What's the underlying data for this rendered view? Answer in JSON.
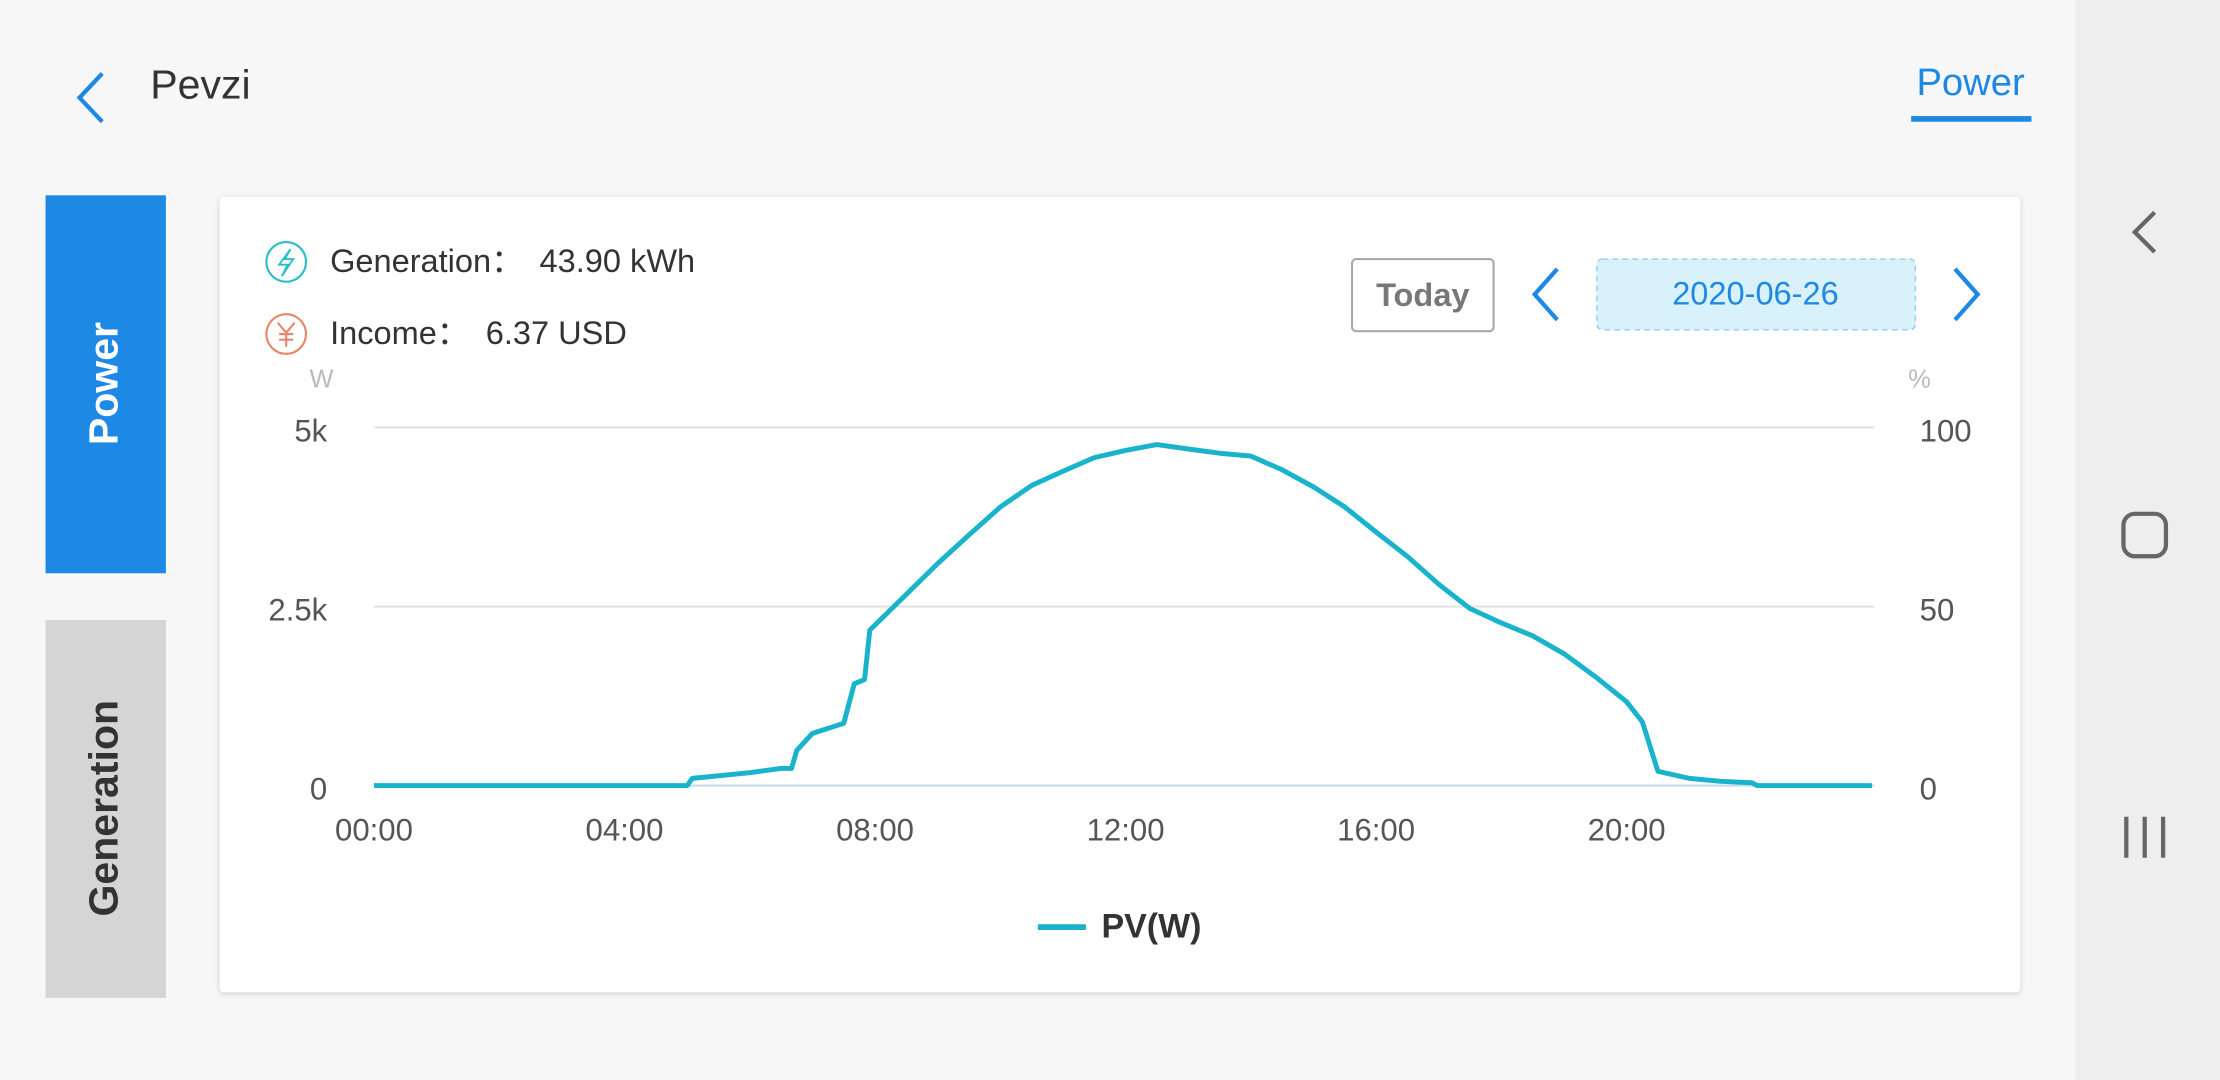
{
  "header": {
    "title": "Pevzi",
    "tab": "Power"
  },
  "side_tabs": [
    "Power",
    "Generation"
  ],
  "summary": {
    "generation_label": "Generation：",
    "generation_value": "43.90 kWh",
    "income_label": "Income：",
    "income_value": "6.37 USD"
  },
  "date_nav": {
    "today": "Today",
    "date": "2020-06-26"
  },
  "chart_data": {
    "type": "line",
    "y_unit": "W",
    "y2_unit": "%",
    "x": [
      "00:00",
      "05:00",
      "05:05",
      "06:00",
      "06:30",
      "06:40",
      "06:45",
      "07:00",
      "07:30",
      "07:40",
      "07:50",
      "07:55",
      "08:30",
      "09:00",
      "09:30",
      "10:00",
      "10:30",
      "11:00",
      "11:30",
      "12:00",
      "12:30",
      "13:00",
      "13:30",
      "14:00",
      "14:30",
      "15:00",
      "15:30",
      "16:00",
      "16:30",
      "17:00",
      "17:30",
      "18:00",
      "18:30",
      "19:00",
      "19:30",
      "20:00",
      "20:15",
      "20:30",
      "21:00",
      "21:30",
      "22:00",
      "22:05",
      "23:55"
    ],
    "series": [
      {
        "name": "PV(W)",
        "color": "#1ab3cc",
        "values": [
          0,
          0,
          100,
          180,
          240,
          240,
          490,
          730,
          870,
          1420,
          1480,
          2170,
          2670,
          3100,
          3500,
          3890,
          4190,
          4390,
          4580,
          4680,
          4760,
          4700,
          4640,
          4600,
          4410,
          4170,
          3890,
          3540,
          3200,
          2810,
          2470,
          2270,
          2090,
          1840,
          1520,
          1170,
          890,
          200,
          100,
          60,
          40,
          0,
          0
        ]
      }
    ],
    "xlim": [
      "00:00",
      "24:00"
    ],
    "xticks": [
      "00:00",
      "04:00",
      "08:00",
      "12:00",
      "16:00",
      "20:00"
    ],
    "ylim": [
      0,
      5000
    ],
    "yticks": [
      0,
      {
        "value": 2500,
        "label": "2.5k"
      },
      {
        "value": 5000,
        "label": "5k"
      }
    ],
    "y2lim": [
      0,
      100
    ],
    "y2ticks": [
      0,
      50,
      100
    ],
    "grid": true
  }
}
